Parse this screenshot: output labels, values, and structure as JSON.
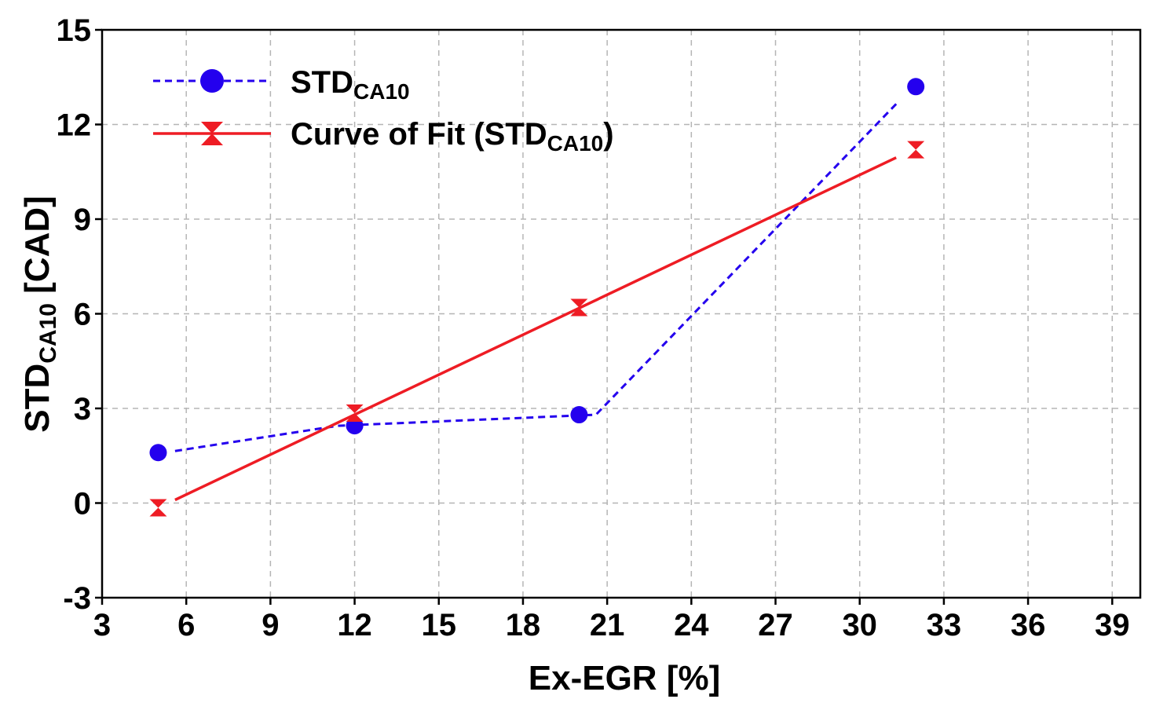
{
  "chart_data": {
    "type": "line",
    "title": "",
    "xlabel": "Ex-EGR [%]",
    "ylabel_main": "STD",
    "ylabel_sub": "CA10",
    "ylabel_unit": " [CAD]",
    "xlim": [
      3,
      40
    ],
    "ylim": [
      -3,
      15
    ],
    "xticks": [
      3,
      6,
      9,
      12,
      15,
      18,
      21,
      24,
      27,
      30,
      33,
      36,
      39
    ],
    "yticks": [
      -3,
      0,
      3,
      6,
      9,
      12,
      15
    ],
    "grid": true,
    "legend_position": "top-left",
    "series": [
      {
        "name": "STD",
        "name_sub": "CA10",
        "name_suffix": "",
        "color": "#2400ee",
        "line_style": "dashed",
        "marker": "circle",
        "x": [
          5,
          12,
          20,
          32
        ],
        "y": [
          1.6,
          2.45,
          2.8,
          13.2
        ],
        "line_x": [
          5.6,
          11.4,
          20.6,
          31.3
        ],
        "line_y": [
          1.65,
          2.45,
          2.8,
          12.65
        ]
      },
      {
        "name": "Curve of Fit (STD",
        "name_sub": "CA10",
        "name_suffix": ")",
        "color": "#ee1c24",
        "line_style": "solid",
        "marker": "hourglass",
        "x": [
          5,
          12,
          20,
          32
        ],
        "y": [
          -0.15,
          2.85,
          6.2,
          11.2
        ],
        "line_x": [
          5.6,
          31.3
        ],
        "line_y": [
          0.1,
          10.95
        ]
      }
    ]
  }
}
